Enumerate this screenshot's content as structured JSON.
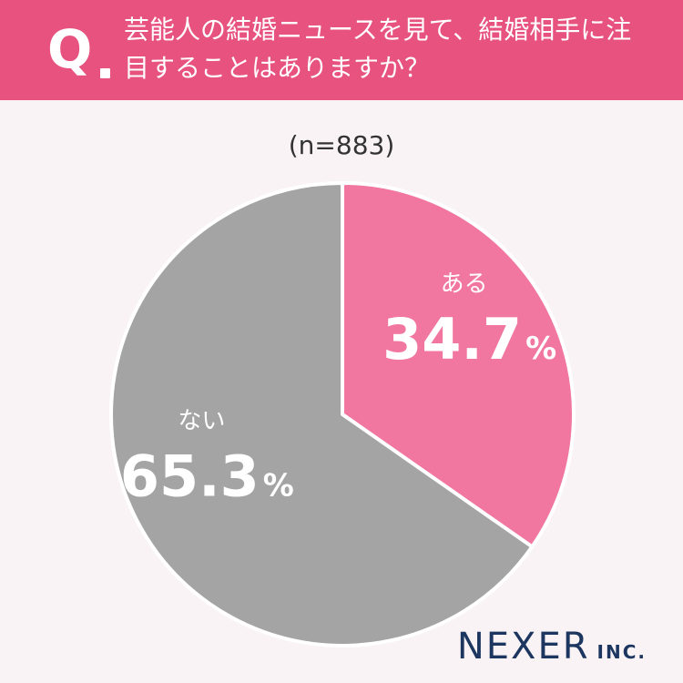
{
  "header": {
    "q_label": "Q",
    "question": "芸能人の結婚ニュースを見て、結婚相手に注目することはありますか？",
    "bg_color": "#e7527f"
  },
  "sample_size": "(n=883)",
  "chart_data": {
    "type": "pie",
    "title": "",
    "slices": [
      {
        "label": "ある",
        "value": 34.7,
        "display": "34.7",
        "unit": "%",
        "color": "#f177a1"
      },
      {
        "label": "ない",
        "value": 65.3,
        "display": "65.3",
        "unit": "%",
        "color": "#a4a4a4"
      }
    ],
    "start": "12 o'clock",
    "direction": "clockwise"
  },
  "logo": {
    "name": "NEXER",
    "suffix": "INC.",
    "color": "#1c3660"
  }
}
